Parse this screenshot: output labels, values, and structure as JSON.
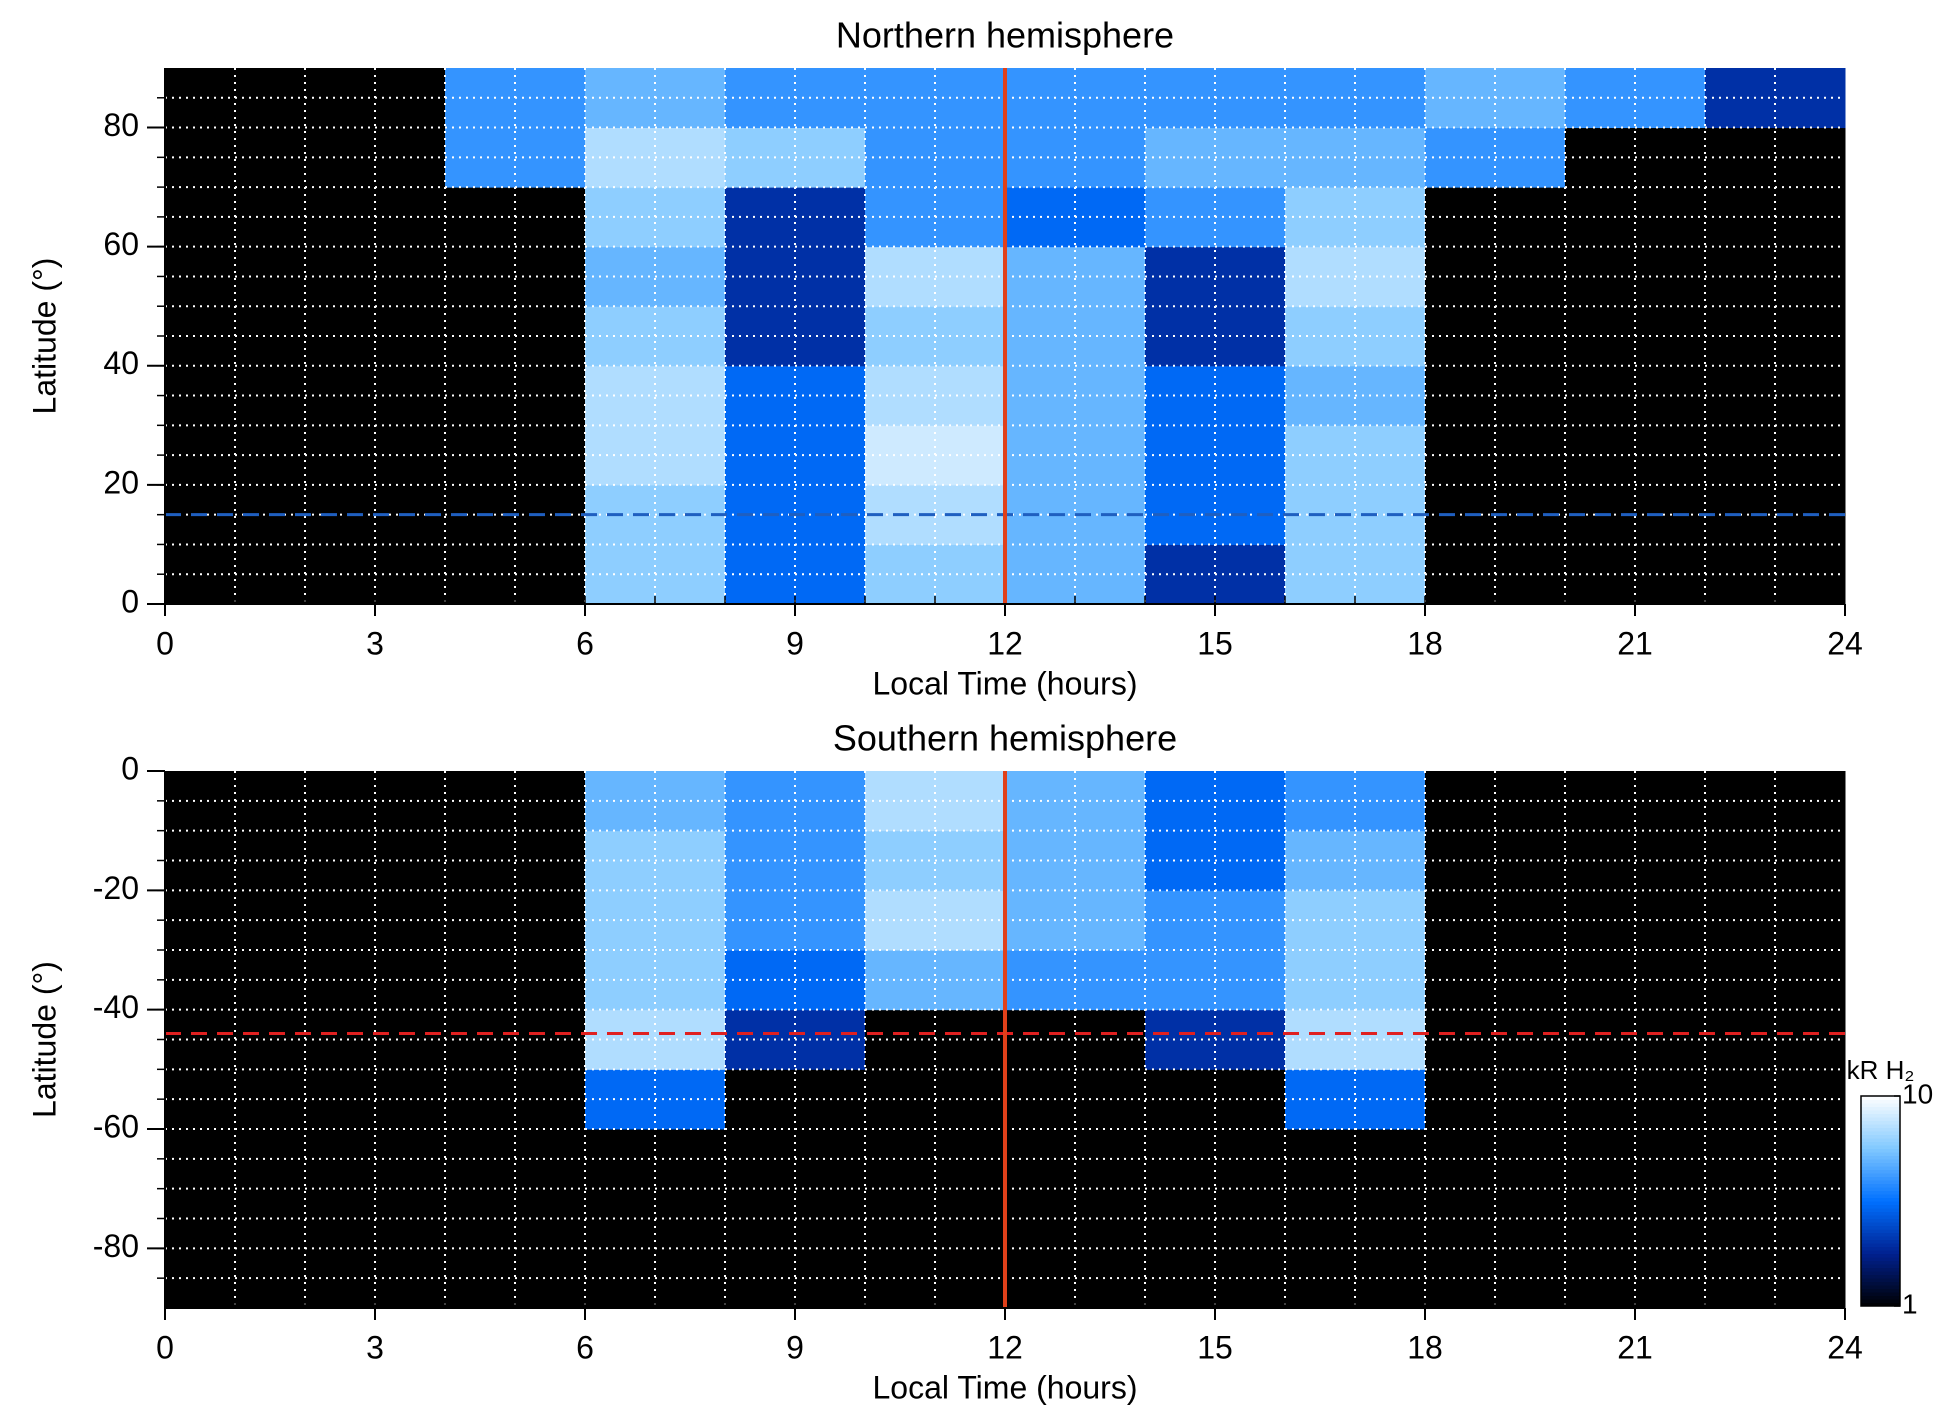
{
  "chart_data": [
    {
      "type": "heatmap",
      "title": "Northern hemisphere",
      "xlabel": "Local Time (hours)",
      "ylabel": "Latitude (°)",
      "xlim": [
        0,
        24
      ],
      "xticks": [
        0,
        3,
        6,
        9,
        12,
        15,
        18,
        21,
        24
      ],
      "ylim": [
        0,
        90
      ],
      "yticks": [
        0,
        20,
        40,
        60,
        80
      ],
      "xminor": 1,
      "yminor": 5,
      "grid": true,
      "xbins": [
        0,
        2,
        4,
        6,
        8,
        10,
        12,
        14,
        16,
        18,
        20,
        22,
        24
      ],
      "ybins": [
        0,
        10,
        20,
        30,
        40,
        50,
        60,
        70,
        80,
        90
      ],
      "values": [
        [
          1,
          1,
          1,
          6,
          3,
          6,
          5,
          2,
          6,
          1,
          1,
          1
        ],
        [
          1,
          1,
          1,
          6,
          3,
          7,
          5,
          3,
          6,
          1,
          1,
          1
        ],
        [
          1,
          1,
          1,
          7,
          3,
          8,
          5,
          3,
          6,
          1,
          1,
          1
        ],
        [
          1,
          1,
          1,
          7,
          3,
          7,
          5,
          3,
          5,
          1,
          1,
          1
        ],
        [
          1,
          1,
          1,
          6,
          2,
          6,
          5,
          2,
          6,
          1,
          1,
          1
        ],
        [
          1,
          1,
          1,
          5,
          2,
          7,
          5,
          2,
          7,
          1,
          1,
          1
        ],
        [
          1,
          1,
          1,
          6,
          2,
          4,
          3,
          4,
          6,
          1,
          1,
          1
        ],
        [
          1,
          1,
          4,
          7,
          6,
          4,
          4,
          5,
          5,
          4,
          1,
          1
        ],
        [
          1,
          1,
          4,
          5,
          4,
          4,
          4,
          4,
          4,
          5,
          4,
          2
        ]
      ],
      "vlines": [
        {
          "value": 12,
          "color": "#e0401a"
        }
      ],
      "hlines": [
        {
          "value": 15,
          "color": "#1f5fc0"
        }
      ]
    },
    {
      "type": "heatmap",
      "title": "Southern hemisphere",
      "xlabel": "Local Time (hours)",
      "ylabel": "Latitude (°)",
      "xlim": [
        0,
        24
      ],
      "xticks": [
        0,
        3,
        6,
        9,
        12,
        15,
        18,
        21,
        24
      ],
      "ylim": [
        -90,
        0
      ],
      "yticks": [
        -80,
        -60,
        -40,
        -20,
        0
      ],
      "xminor": 1,
      "yminor": 5,
      "grid": true,
      "xbins": [
        0,
        2,
        4,
        6,
        8,
        10,
        12,
        14,
        16,
        18,
        20,
        22,
        24
      ],
      "ybins": [
        -90,
        -80,
        -70,
        -60,
        -50,
        -40,
        -30,
        -20,
        -10,
        0
      ],
      "values": [
        [
          1,
          1,
          1,
          1,
          1,
          1,
          1,
          1,
          1,
          1,
          1,
          1
        ],
        [
          1,
          1,
          1,
          1,
          1,
          1,
          1,
          1,
          1,
          1,
          1,
          1
        ],
        [
          1,
          1,
          1,
          1,
          1,
          1,
          1,
          1,
          1,
          1,
          1,
          1
        ],
        [
          1,
          1,
          1,
          3,
          1,
          1,
          1,
          1,
          3,
          1,
          1,
          1
        ],
        [
          1,
          1,
          1,
          7,
          2,
          1,
          1,
          2,
          7,
          1,
          1,
          1
        ],
        [
          1,
          1,
          1,
          6,
          3,
          5,
          4,
          4,
          6,
          1,
          1,
          1
        ],
        [
          1,
          1,
          1,
          6,
          4,
          7,
          5,
          4,
          6,
          1,
          1,
          1
        ],
        [
          1,
          1,
          1,
          6,
          4,
          6,
          5,
          3,
          5,
          1,
          1,
          1
        ],
        [
          1,
          1,
          1,
          5,
          4,
          7,
          5,
          3,
          4,
          1,
          1,
          1
        ]
      ],
      "vlines": [
        {
          "value": 12,
          "color": "#e0401a"
        }
      ],
      "hlines": [
        {
          "value": -44,
          "color": "#e02020"
        }
      ],
      "colorbar": {
        "label": "kR H₂",
        "lim": [
          1,
          10
        ],
        "ticks": [
          1,
          10
        ],
        "log": true,
        "colormap": [
          "#000000",
          "#00208f",
          "#0070ff",
          "#80c8ff",
          "#ffffff"
        ]
      }
    }
  ]
}
